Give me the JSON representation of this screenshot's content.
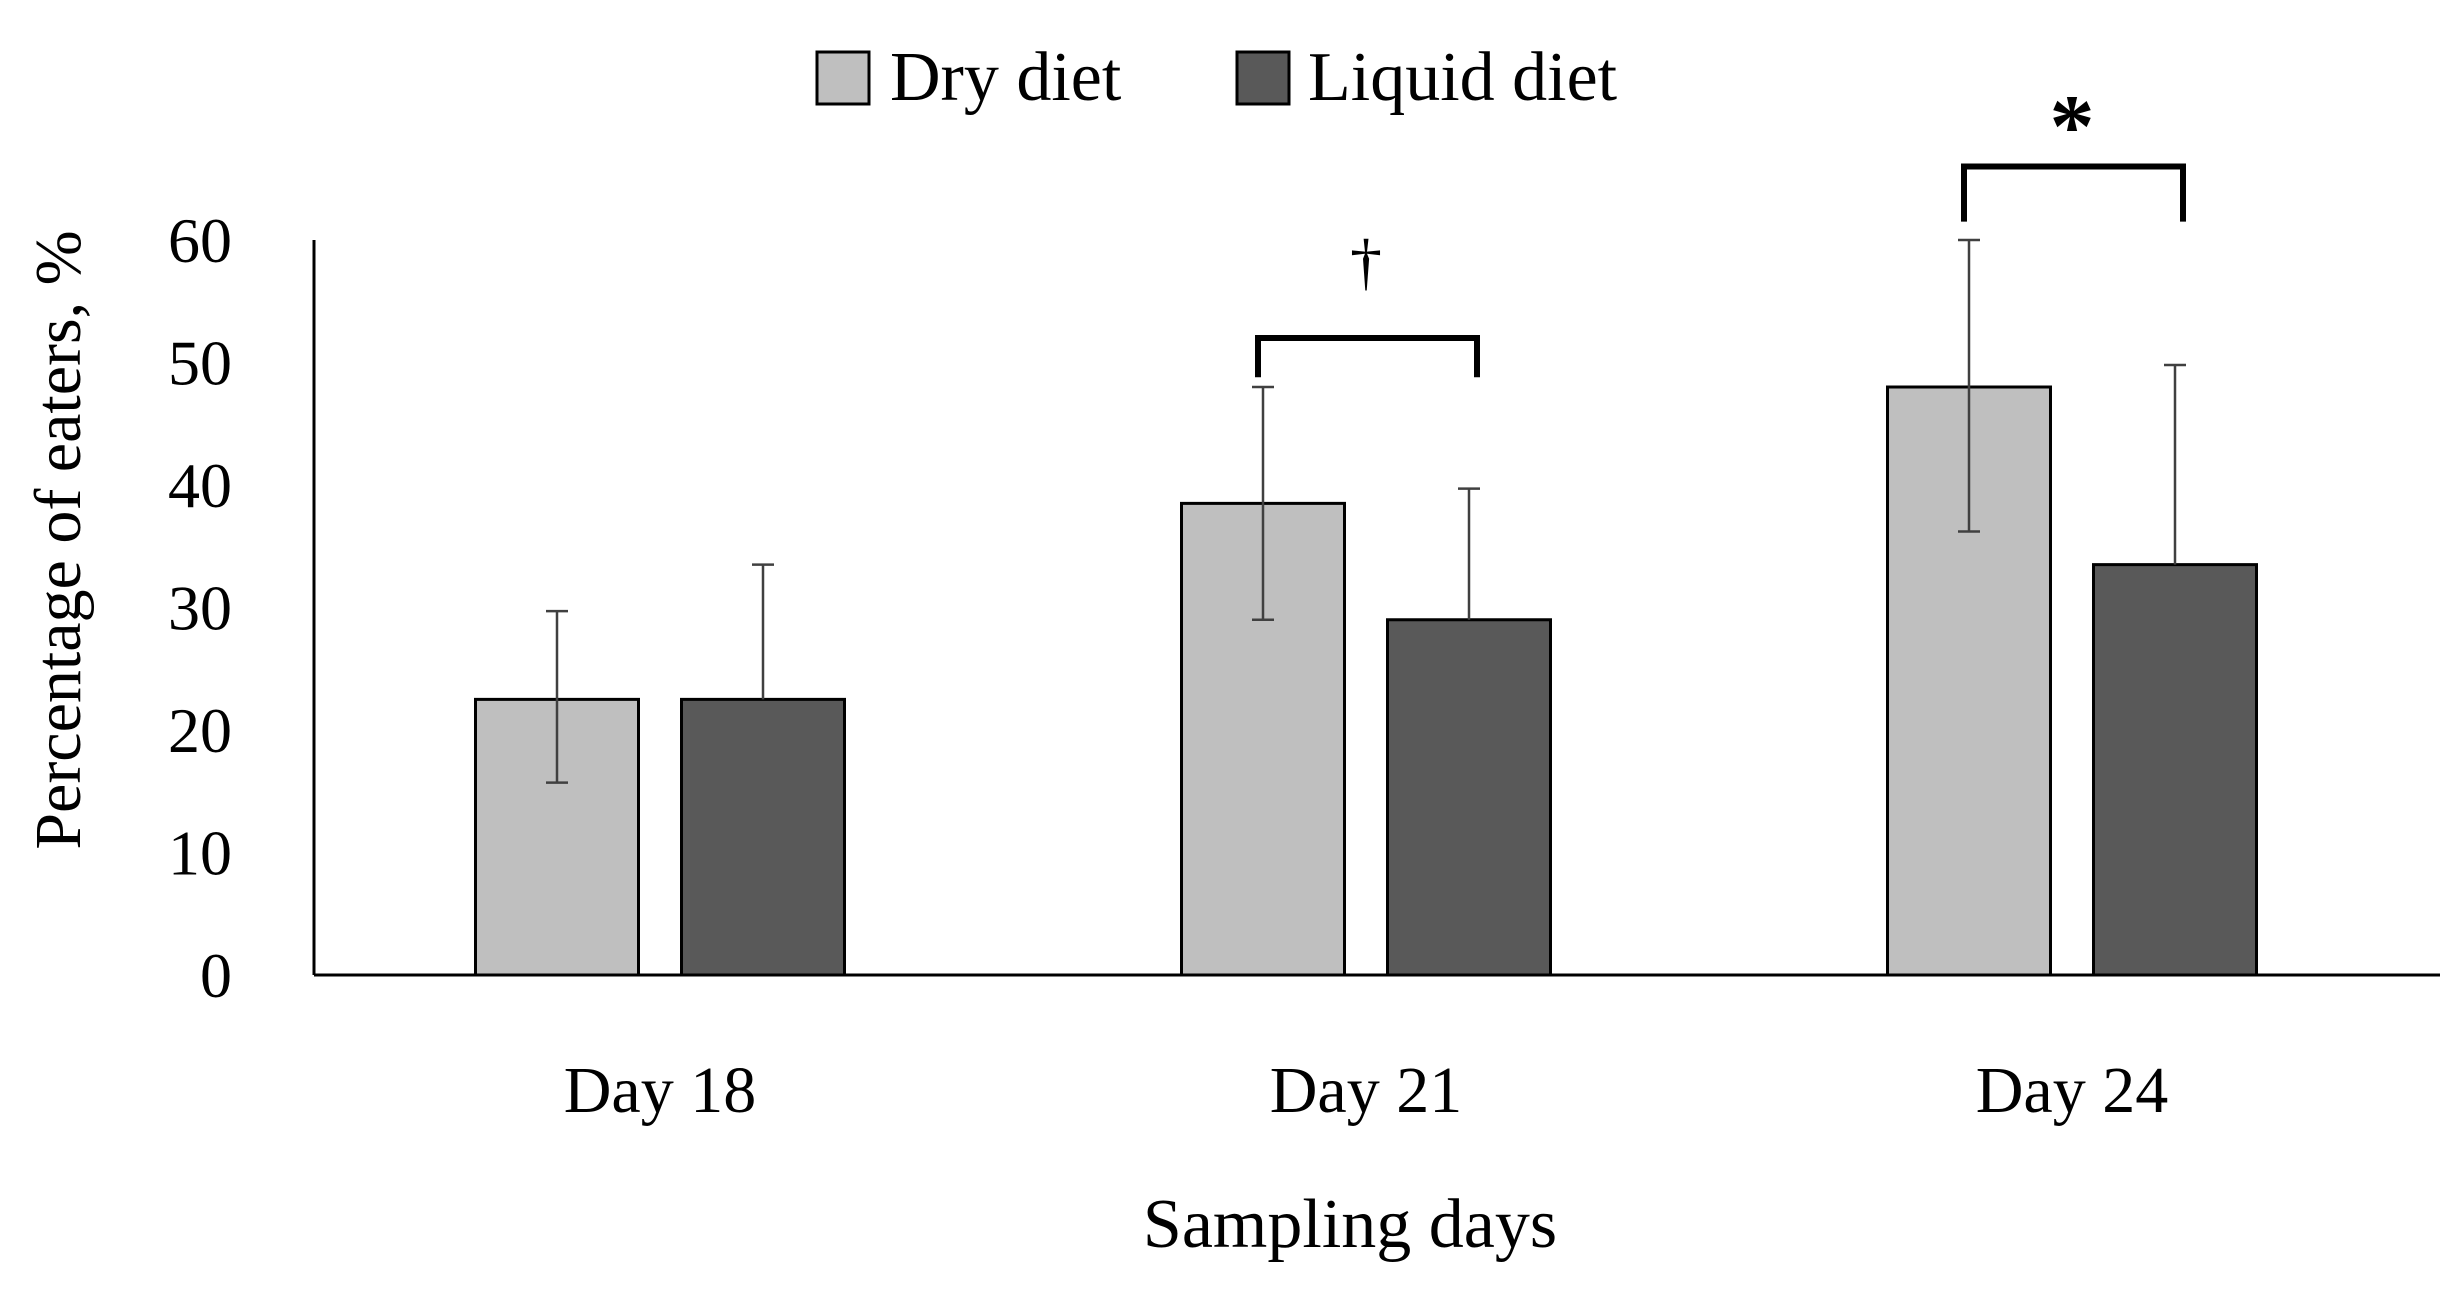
{
  "chart_data": {
    "type": "bar",
    "title": "",
    "xlabel": "Sampling days",
    "ylabel": "Percentage of eaters, %",
    "categories": [
      "Day 18",
      "Day 21",
      "Day 24"
    ],
    "series": [
      {
        "name": "Dry diet",
        "color": "#bfbfbf",
        "values": [
          22.5,
          38.5,
          48.0
        ],
        "err_low": [
          15.7,
          29.0,
          36.2
        ],
        "err_high": [
          29.7,
          48.0,
          60.0
        ]
      },
      {
        "name": "Liquid diet",
        "color": "#595959",
        "values": [
          22.5,
          29.0,
          33.5
        ],
        "err_low": [
          22.5,
          29.0,
          33.5
        ],
        "err_high": [
          33.5,
          39.7,
          49.8
        ]
      }
    ],
    "ylim": [
      0,
      60
    ],
    "yticks": [
      0,
      10,
      20,
      30,
      40,
      50,
      60
    ],
    "legend_position": "top-center",
    "grid": false,
    "annotations": [
      {
        "category": "Day 21",
        "symbol": "†",
        "bracket_level": 52,
        "leg_bottom": 48.8
      },
      {
        "category": "Day 24",
        "symbol": "*",
        "bracket_level": 66,
        "leg_bottom": 61.5
      }
    ]
  }
}
